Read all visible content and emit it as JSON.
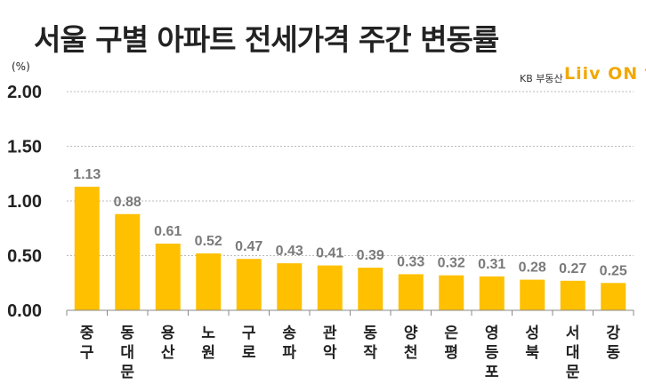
{
  "title": "서울 구별 아파트 전세가격 주간 변동률",
  "unit": "(%)",
  "brand": {
    "prefix": "KB 부동산",
    "logo": "Liiv ON"
  },
  "colors": {
    "bar": "#FFC000",
    "grid": "#bbbbbb",
    "axis": "#888888"
  },
  "chart_data": {
    "type": "bar",
    "title": "서울 구별 아파트 전세가격 주간 변동률",
    "ylabel": "(%)",
    "xlabel": "",
    "ylim": [
      0,
      2.0
    ],
    "yticks": [
      "0.00",
      "0.50",
      "1.00",
      "1.50",
      "2.00"
    ],
    "grid": true,
    "categories": [
      "중구",
      "동대문",
      "용산",
      "노원",
      "구로",
      "송파",
      "관악",
      "동작",
      "양천",
      "은평",
      "영등포",
      "성북",
      "서대문",
      "강동"
    ],
    "values": [
      1.13,
      0.88,
      0.61,
      0.52,
      0.47,
      0.43,
      0.41,
      0.39,
      0.33,
      0.32,
      0.31,
      0.28,
      0.27,
      0.25
    ],
    "value_labels": [
      "1.13",
      "0.88",
      "0.61",
      "0.52",
      "0.47",
      "0.43",
      "0.41",
      "0.39",
      "0.33",
      "0.32",
      "0.31",
      "0.28",
      "0.27",
      "0.25"
    ]
  }
}
